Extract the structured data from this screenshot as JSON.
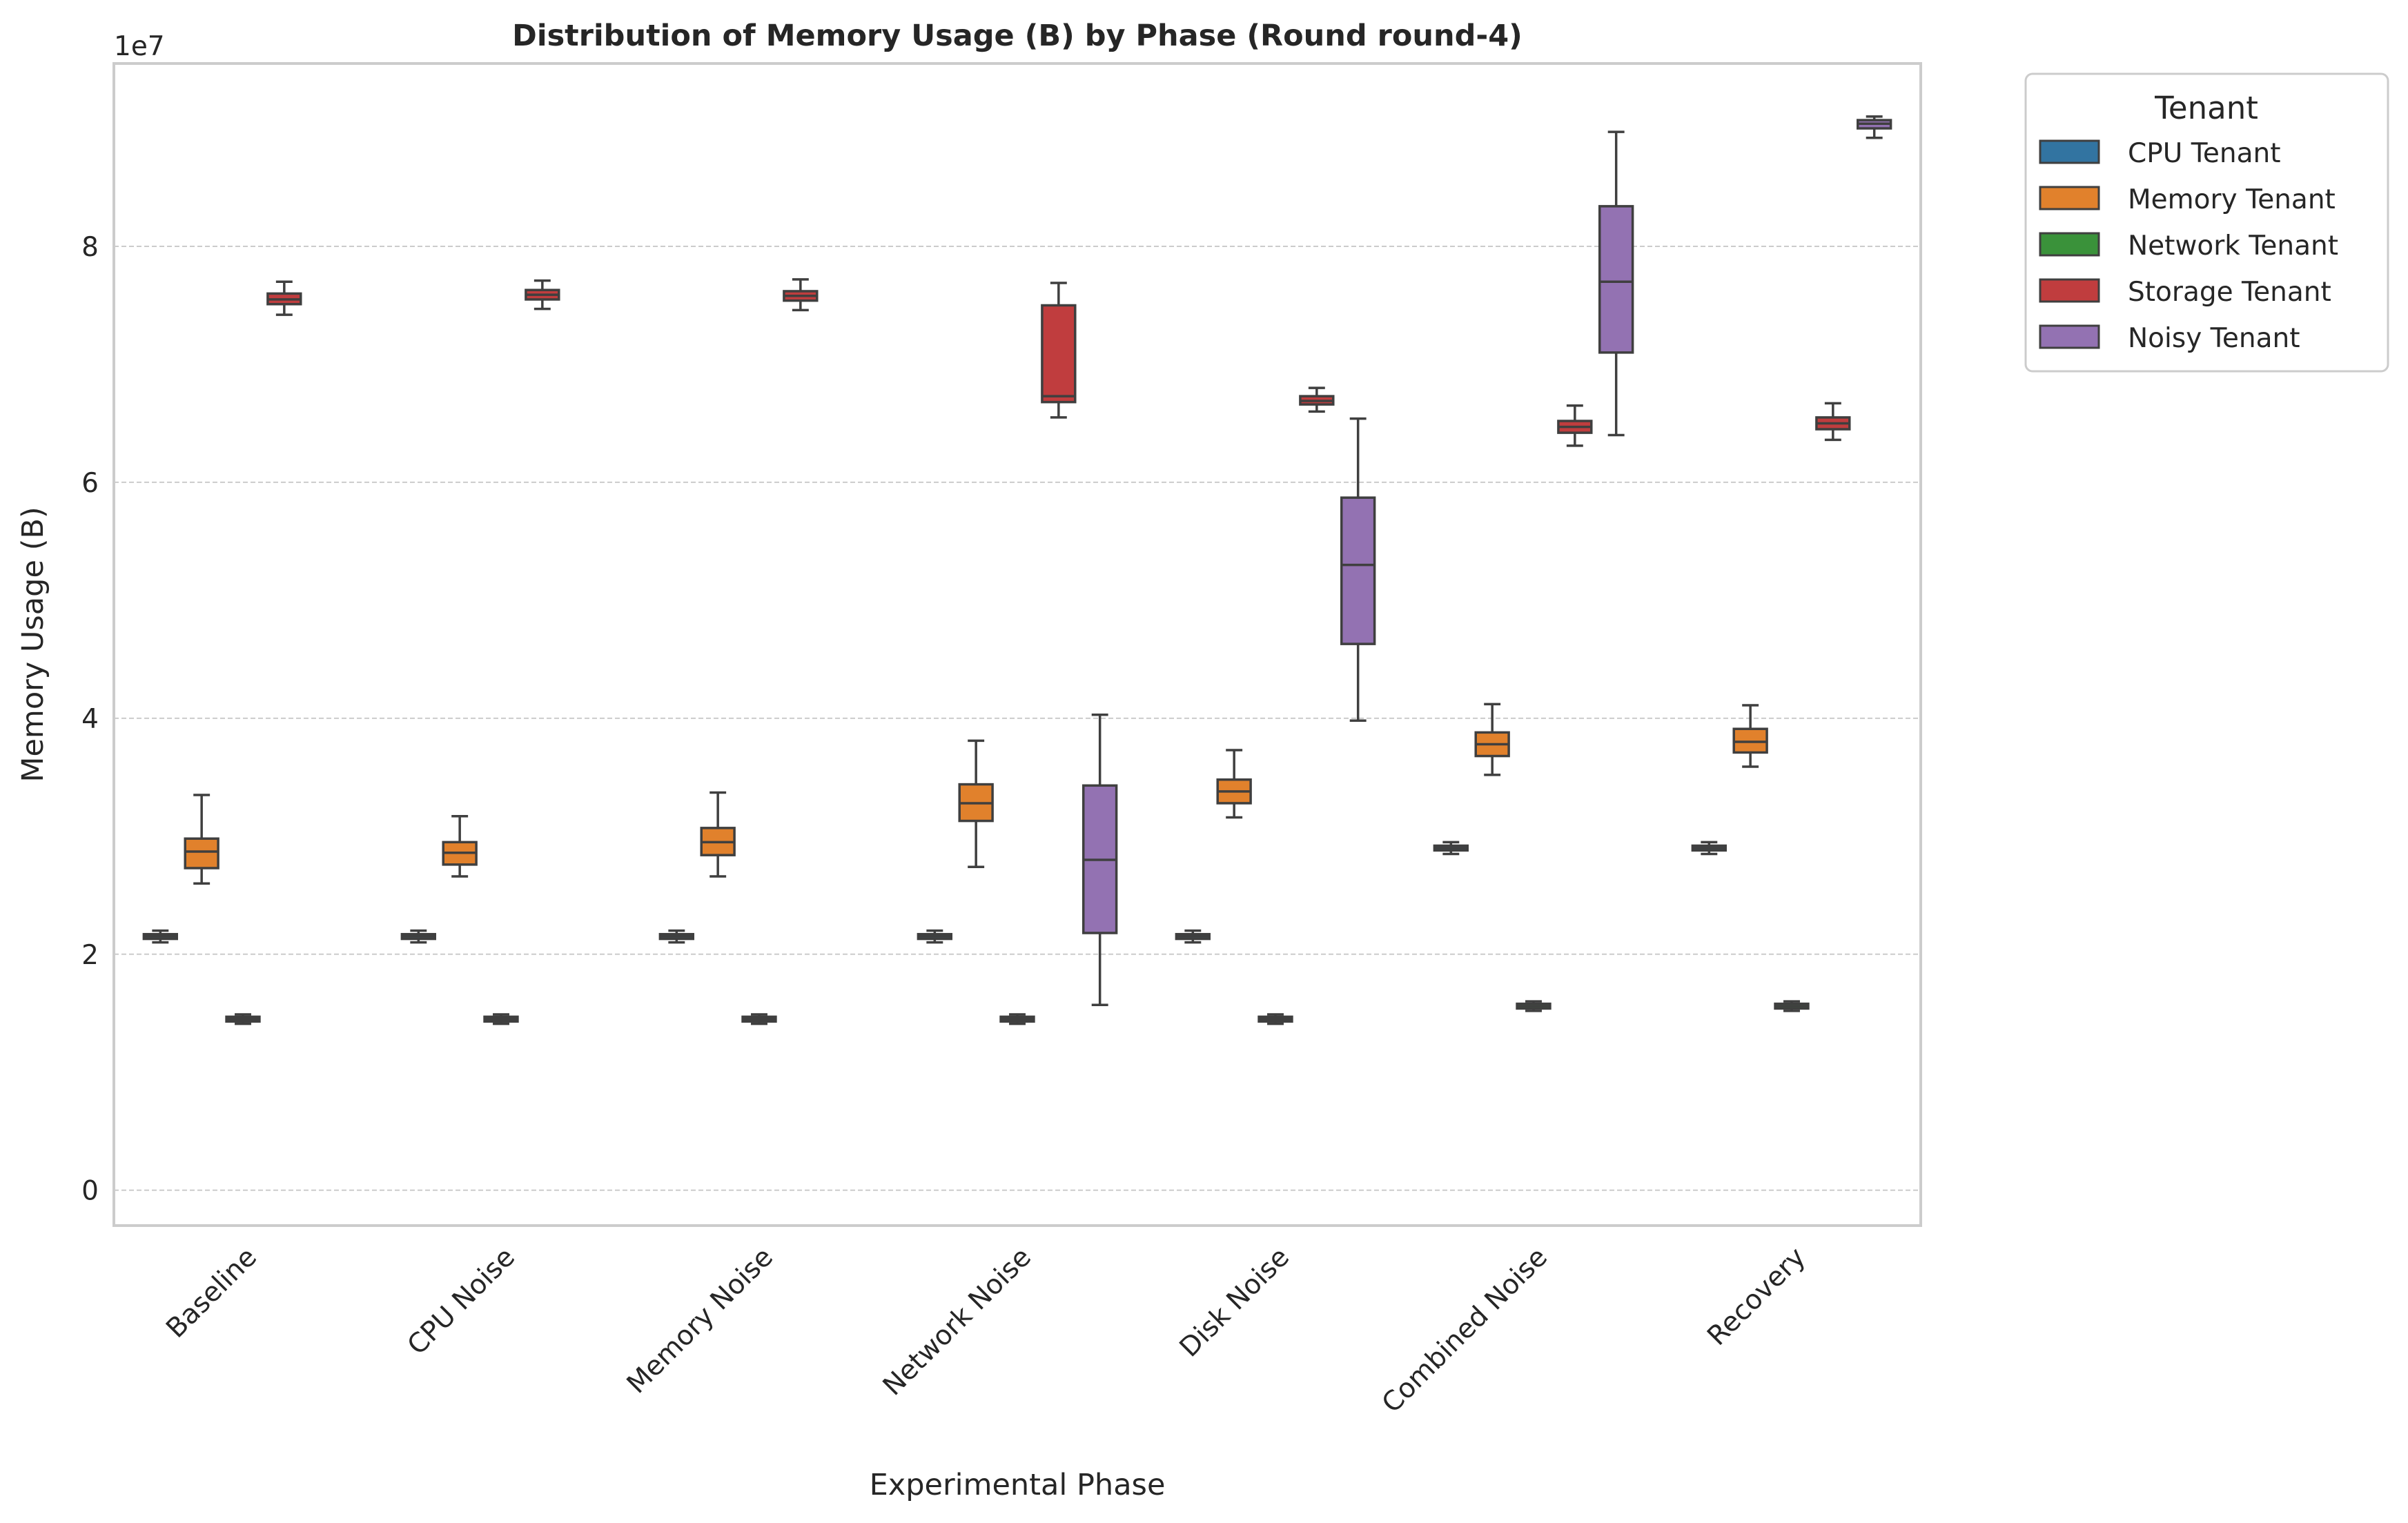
{
  "chart_data": {
    "type": "box",
    "title": "Distribution of Memory Usage (B) by Phase (Round round-4)",
    "xlabel": "Experimental Phase",
    "ylabel": "Memory Usage (B)",
    "y_scale_label": "1e7",
    "y_unit_multiplier": 10000000,
    "ylim": [
      -0.3,
      9.55
    ],
    "yticks": [
      0,
      2,
      4,
      6,
      8
    ],
    "grid": true,
    "grid_axis": "y",
    "legend_title": "Tenant",
    "legend_position": "outside-top-right",
    "categories": [
      "Baseline",
      "CPU Noise",
      "Memory Noise",
      "Network Noise",
      "Disk Noise",
      "Combined Noise",
      "Recovery"
    ],
    "series": [
      {
        "name": "CPU Tenant",
        "color": "#3274a1",
        "boxes": [
          [
            2.1,
            2.13,
            2.15,
            2.17,
            2.2
          ],
          [
            2.1,
            2.13,
            2.15,
            2.17,
            2.2
          ],
          [
            2.1,
            2.13,
            2.15,
            2.17,
            2.2
          ],
          [
            2.1,
            2.13,
            2.15,
            2.17,
            2.2
          ],
          [
            2.1,
            2.13,
            2.15,
            2.17,
            2.2
          ],
          [
            2.85,
            2.88,
            2.9,
            2.92,
            2.95
          ],
          [
            2.85,
            2.88,
            2.9,
            2.92,
            2.95
          ]
        ]
      },
      {
        "name": "Memory Tenant",
        "color": "#e1812c",
        "boxes": [
          [
            2.6,
            2.73,
            2.87,
            2.98,
            3.35
          ],
          [
            2.66,
            2.76,
            2.86,
            2.95,
            3.17
          ],
          [
            2.66,
            2.84,
            2.95,
            3.07,
            3.37
          ],
          [
            2.74,
            3.13,
            3.28,
            3.44,
            3.81
          ],
          [
            3.16,
            3.28,
            3.38,
            3.48,
            3.73
          ],
          [
            3.52,
            3.68,
            3.78,
            3.88,
            4.12
          ],
          [
            3.59,
            3.71,
            3.8,
            3.91,
            4.11
          ]
        ]
      },
      {
        "name": "Network Tenant",
        "color": "#3a923a",
        "boxes": [
          [
            1.41,
            1.43,
            1.45,
            1.47,
            1.49
          ],
          [
            1.41,
            1.43,
            1.45,
            1.47,
            1.49
          ],
          [
            1.41,
            1.43,
            1.45,
            1.47,
            1.49
          ],
          [
            1.41,
            1.43,
            1.45,
            1.47,
            1.49
          ],
          [
            1.41,
            1.43,
            1.45,
            1.47,
            1.49
          ],
          [
            1.52,
            1.54,
            1.56,
            1.58,
            1.6
          ],
          [
            1.52,
            1.54,
            1.56,
            1.58,
            1.6
          ]
        ]
      },
      {
        "name": "Storage Tenant",
        "color": "#c03d3e",
        "boxes": [
          [
            7.42,
            7.51,
            7.55,
            7.6,
            7.7
          ],
          [
            7.47,
            7.55,
            7.59,
            7.63,
            7.71
          ],
          [
            7.46,
            7.54,
            7.58,
            7.62,
            7.72
          ],
          [
            6.55,
            6.68,
            6.73,
            7.5,
            7.69
          ],
          [
            6.6,
            6.66,
            6.69,
            6.73,
            6.8
          ],
          [
            6.31,
            6.42,
            6.47,
            6.52,
            6.65
          ],
          [
            6.36,
            6.45,
            6.5,
            6.55,
            6.67
          ]
        ]
      },
      {
        "name": "Noisy Tenant",
        "color": "#9372b2",
        "boxes": [
          null,
          null,
          null,
          [
            1.57,
            2.18,
            2.8,
            3.43,
            4.03
          ],
          [
            3.98,
            4.63,
            5.3,
            5.87,
            6.54
          ],
          [
            6.4,
            7.1,
            7.7,
            8.34,
            8.97
          ],
          [
            8.92,
            9.0,
            9.04,
            9.07,
            9.1
          ]
        ]
      }
    ]
  }
}
